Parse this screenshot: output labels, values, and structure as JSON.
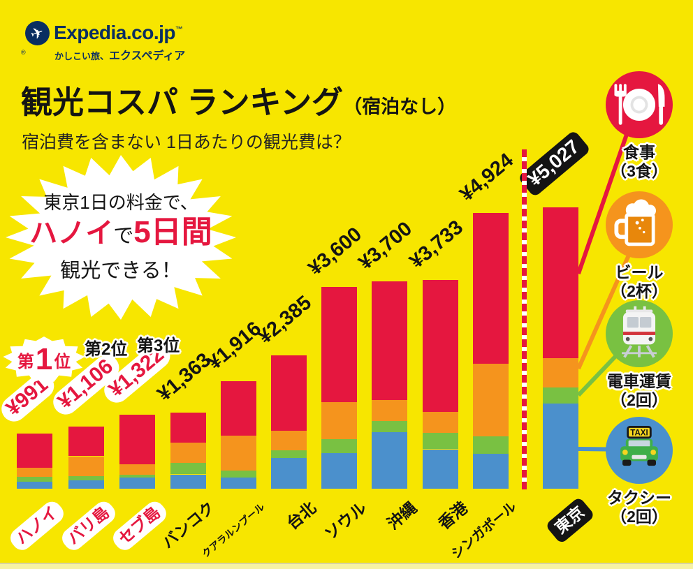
{
  "brand": {
    "logo_text": "Expedia.co.jp",
    "trademark": "™",
    "registered": "®",
    "tagline_small": "かしこい旅、",
    "tagline_bold": "エクスペディア",
    "navy": "#0A2E61"
  },
  "header": {
    "title": "観光コスパ ランキング",
    "title_suffix": "（宿泊なし）",
    "subtitle": "宿泊費を含まない 1日あたりの観光費は？"
  },
  "callout": {
    "line1": "東京1日の料金で、",
    "line2_red1": "ハノイ",
    "line2_black": "で",
    "line2_red2": "5日間",
    "line3": "観光できる！"
  },
  "ranks": {
    "first": {
      "prefix": "第",
      "number": "1",
      "suffix": "位",
      "category": "ハノイ"
    },
    "second": {
      "label": "第2位",
      "category": "バリ島"
    },
    "third": {
      "label": "第3位",
      "category": "セブ島"
    }
  },
  "legend": [
    {
      "name": "meal",
      "icon": "meal-icon",
      "label_line1": "食事",
      "label_line2": "（3食）",
      "color": "#E5173F"
    },
    {
      "name": "beer",
      "icon": "beer-icon",
      "label_line1": "ビール",
      "label_line2": "（2杯）",
      "color": "#F5941D"
    },
    {
      "name": "train",
      "icon": "train-icon",
      "label_line1": "電車運賃",
      "label_line2": "（2回）",
      "color": "#79C142"
    },
    {
      "name": "taxi",
      "icon": "taxi-icon",
      "label_line1": "タクシー",
      "label_line2": "（2回）",
      "color": "#4B90CC"
    }
  ],
  "chart_data": {
    "type": "bar",
    "stacked": true,
    "title": "観光コスパ ランキング（宿泊なし）",
    "categories": [
      "ハノイ",
      "バリ島",
      "セブ島",
      "バンコク",
      "クアラルンプール",
      "台北",
      "ソウル",
      "沖縄",
      "香港",
      "シンガポール",
      "東京"
    ],
    "totals": [
      991,
      1106,
      1322,
      1363,
      1916,
      2385,
      3600,
      3700,
      3733,
      4924,
      5027
    ],
    "value_labels": [
      "¥991",
      "¥1,106",
      "¥1,322",
      "¥1,363",
      "¥1,916",
      "¥2,385",
      "¥3,600",
      "¥3,700",
      "¥3,733",
      "¥4,924",
      "¥5,027"
    ],
    "series": [
      {
        "name": "タクシー（2回）",
        "color": "#4B90CC",
        "values": [
          125,
          150,
          200,
          255,
          200,
          545,
          640,
          1015,
          705,
          625,
          1521
        ]
      },
      {
        "name": "電車運賃（2回）",
        "color": "#79C142",
        "values": [
          85,
          70,
          55,
          210,
          120,
          145,
          250,
          195,
          290,
          310,
          287
        ]
      },
      {
        "name": "ビール（2杯）",
        "color": "#F5941D",
        "values": [
          165,
          360,
          177,
          360,
          630,
          350,
          655,
          378,
          375,
          1300,
          524
        ]
      },
      {
        "name": "食事（3食）",
        "color": "#E5173F",
        "values": [
          616,
          526,
          890,
          538,
          966,
          1345,
          2055,
          2112,
          2363,
          2689,
          2695
        ]
      }
    ],
    "segments_estimated": true,
    "highlight_category": "東京",
    "separator_note": "red/white dashed line between シンガポール and 東京",
    "ylim": [
      0,
      5100
    ],
    "legend_position": "right"
  },
  "colors": {
    "background": "#F7E600",
    "red": "#E5173F",
    "orange": "#F5941D",
    "green": "#79C142",
    "blue": "#4B90CC",
    "navy": "#0A2E61",
    "footer_strip": "#F6F2A4"
  }
}
